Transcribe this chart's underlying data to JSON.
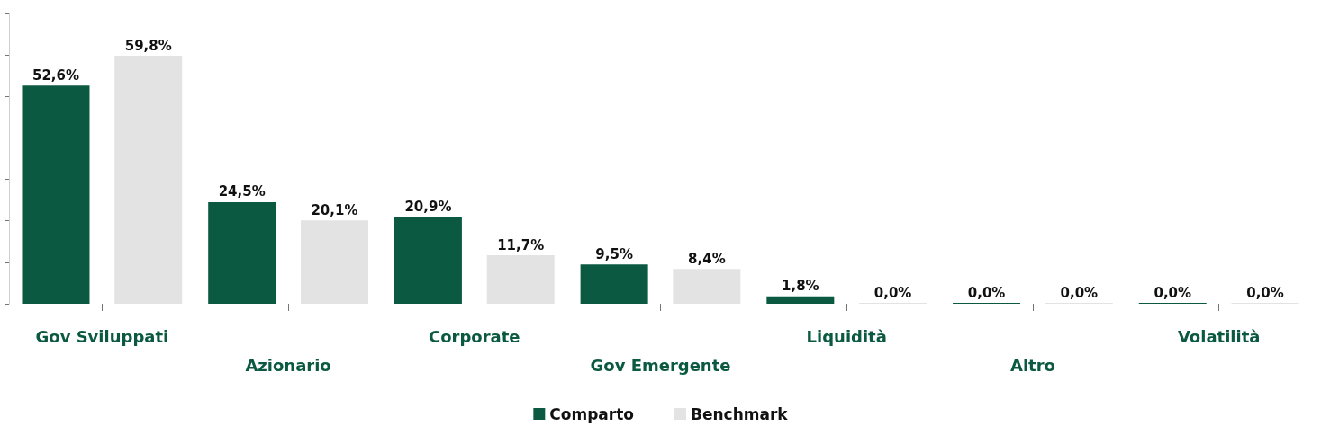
{
  "chart_data": {
    "type": "bar",
    "categories": [
      "Gov Sviluppati",
      "Azionario",
      "Corporate",
      "Gov Emergente",
      "Liquidità",
      "Altro",
      "Volatilità"
    ],
    "series": [
      {
        "name": "Comparto",
        "color": "#0b5940",
        "values": [
          52.6,
          24.5,
          20.9,
          9.5,
          1.8,
          0.0,
          0.0
        ],
        "value_labels": [
          "52,6%",
          "24,5%",
          "20,9%",
          "9,5%",
          "1,8%",
          "0,0%",
          "0,0%"
        ]
      },
      {
        "name": "Benchmark",
        "color": "#e3e3e3",
        "values": [
          59.8,
          20.1,
          11.7,
          8.4,
          0.0,
          0.0,
          0.0
        ],
        "value_labels": [
          "59,8%",
          "20,1%",
          "11,7%",
          "8,4%",
          "0,0%",
          "0,0%",
          "0,0%"
        ]
      }
    ],
    "ylim": [
      0,
      70
    ],
    "yticks": [
      {
        "value": 0,
        "label": null
      },
      {
        "value": 10,
        "label": null
      },
      {
        "value": 20,
        "label": null
      },
      {
        "value": 30,
        "label": null
      },
      {
        "value": 40,
        "label": null
      },
      {
        "value": 50,
        "label": null
      },
      {
        "value": 60,
        "label": null
      },
      {
        "value": 70,
        "label": null
      }
    ],
    "tick_labels": "x",
    "grid": false,
    "legend": "bottom"
  }
}
